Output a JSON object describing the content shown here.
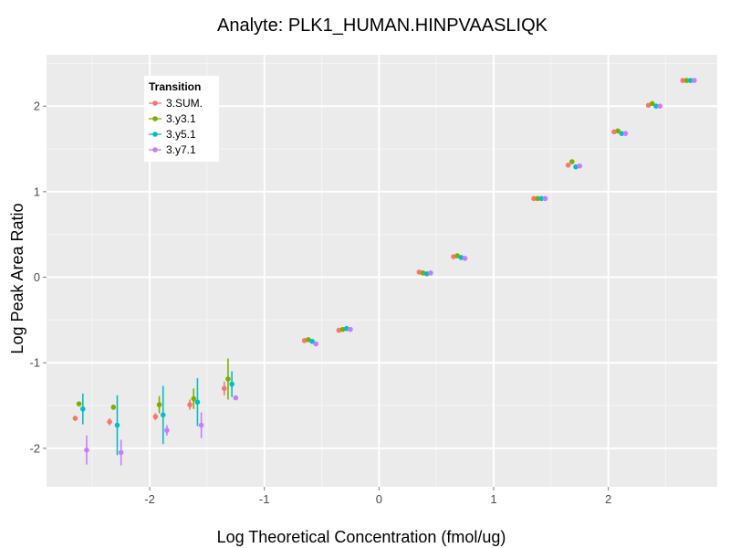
{
  "chart_data": {
    "type": "scatter",
    "title": "Analyte: PLK1_HUMAN.HINPVAASLIQK",
    "xlabel": "Log Theoretical Concentration (fmol/ug)",
    "ylabel": "Log Peak Area Ratio",
    "xlim": [
      -2.9,
      2.95
    ],
    "ylim": [
      -2.45,
      2.6
    ],
    "x_ticks": [
      -2,
      -1,
      0,
      1,
      2
    ],
    "y_ticks": [
      -2,
      -1,
      0,
      1,
      2
    ],
    "grid": true,
    "legend": {
      "title": "Transition",
      "placement": "top-left"
    },
    "series": [
      {
        "name": "3.SUM.",
        "color": "#F8766D",
        "points": [
          {
            "x": -2.6,
            "y": -1.65,
            "err": 0.03
          },
          {
            "x": -2.3,
            "y": -1.69,
            "err": 0.04
          },
          {
            "x": -1.9,
            "y": -1.63,
            "err": 0.04
          },
          {
            "x": -1.6,
            "y": -1.49,
            "err": 0.06
          },
          {
            "x": -1.3,
            "y": -1.3,
            "err": 0.08
          },
          {
            "x": -0.6,
            "y": -0.74,
            "err": 0.02
          },
          {
            "x": -0.3,
            "y": -0.62,
            "err": 0.01
          },
          {
            "x": 0.4,
            "y": 0.06,
            "err": 0.01
          },
          {
            "x": 0.7,
            "y": 0.24,
            "err": 0.01
          },
          {
            "x": 1.4,
            "y": 0.92,
            "err": 0.01
          },
          {
            "x": 1.7,
            "y": 1.31,
            "err": 0.01
          },
          {
            "x": 2.1,
            "y": 1.7,
            "err": 0.01
          },
          {
            "x": 2.4,
            "y": 2.01,
            "err": 0.01
          },
          {
            "x": 2.7,
            "y": 2.3,
            "err": 0.01
          }
        ]
      },
      {
        "name": "3.y3.1",
        "color": "#7CAE00",
        "points": [
          {
            "x": -2.6,
            "y": -1.48,
            "err": 0.02
          },
          {
            "x": -2.3,
            "y": -1.52,
            "err": 0.03
          },
          {
            "x": -1.9,
            "y": -1.49,
            "err": 0.1
          },
          {
            "x": -1.6,
            "y": -1.42,
            "err": 0.12
          },
          {
            "x": -1.3,
            "y": -1.19,
            "err": 0.24
          },
          {
            "x": -0.6,
            "y": -0.73,
            "err": 0.02
          },
          {
            "x": -0.3,
            "y": -0.61,
            "err": 0.01
          },
          {
            "x": 0.4,
            "y": 0.05,
            "err": 0.01
          },
          {
            "x": 0.7,
            "y": 0.25,
            "err": 0.01
          },
          {
            "x": 1.4,
            "y": 0.92,
            "err": 0.01
          },
          {
            "x": 1.7,
            "y": 1.35,
            "err": 0.01
          },
          {
            "x": 2.1,
            "y": 1.71,
            "err": 0.01
          },
          {
            "x": 2.4,
            "y": 2.03,
            "err": 0.01
          },
          {
            "x": 2.7,
            "y": 2.3,
            "err": 0.01
          }
        ]
      },
      {
        "name": "3.y5.1",
        "color": "#00BFC4",
        "points": [
          {
            "x": -2.6,
            "y": -1.54,
            "err": 0.18
          },
          {
            "x": -2.3,
            "y": -1.73,
            "err": 0.35
          },
          {
            "x": -1.9,
            "y": -1.61,
            "err": 0.34
          },
          {
            "x": -1.6,
            "y": -1.46,
            "err": 0.28
          },
          {
            "x": -1.3,
            "y": -1.25,
            "err": 0.15
          },
          {
            "x": -0.6,
            "y": -0.75,
            "err": 0.02
          },
          {
            "x": -0.3,
            "y": -0.6,
            "err": 0.01
          },
          {
            "x": 0.4,
            "y": 0.04,
            "err": 0.01
          },
          {
            "x": 0.7,
            "y": 0.23,
            "err": 0.01
          },
          {
            "x": 1.4,
            "y": 0.92,
            "err": 0.01
          },
          {
            "x": 1.7,
            "y": 1.29,
            "err": 0.01
          },
          {
            "x": 2.1,
            "y": 1.68,
            "err": 0.01
          },
          {
            "x": 2.4,
            "y": 2.0,
            "err": 0.01
          },
          {
            "x": 2.7,
            "y": 2.3,
            "err": 0.01
          }
        ]
      },
      {
        "name": "3.y7.1",
        "color": "#C77CFF",
        "points": [
          {
            "x": -2.6,
            "y": -2.02,
            "err": 0.17
          },
          {
            "x": -2.3,
            "y": -2.05,
            "err": 0.15
          },
          {
            "x": -1.9,
            "y": -1.79,
            "err": 0.06
          },
          {
            "x": -1.6,
            "y": -1.73,
            "err": 0.15
          },
          {
            "x": -1.3,
            "y": -1.41,
            "err": 0.02
          },
          {
            "x": -0.6,
            "y": -0.78,
            "err": 0.01
          },
          {
            "x": -0.3,
            "y": -0.61,
            "err": 0.01
          },
          {
            "x": 0.4,
            "y": 0.05,
            "err": 0.01
          },
          {
            "x": 0.7,
            "y": 0.22,
            "err": 0.01
          },
          {
            "x": 1.4,
            "y": 0.92,
            "err": 0.01
          },
          {
            "x": 1.7,
            "y": 1.3,
            "err": 0.01
          },
          {
            "x": 2.1,
            "y": 1.68,
            "err": 0.01
          },
          {
            "x": 2.4,
            "y": 2.0,
            "err": 0.01
          },
          {
            "x": 2.7,
            "y": 2.3,
            "err": 0.01
          }
        ]
      }
    ]
  }
}
